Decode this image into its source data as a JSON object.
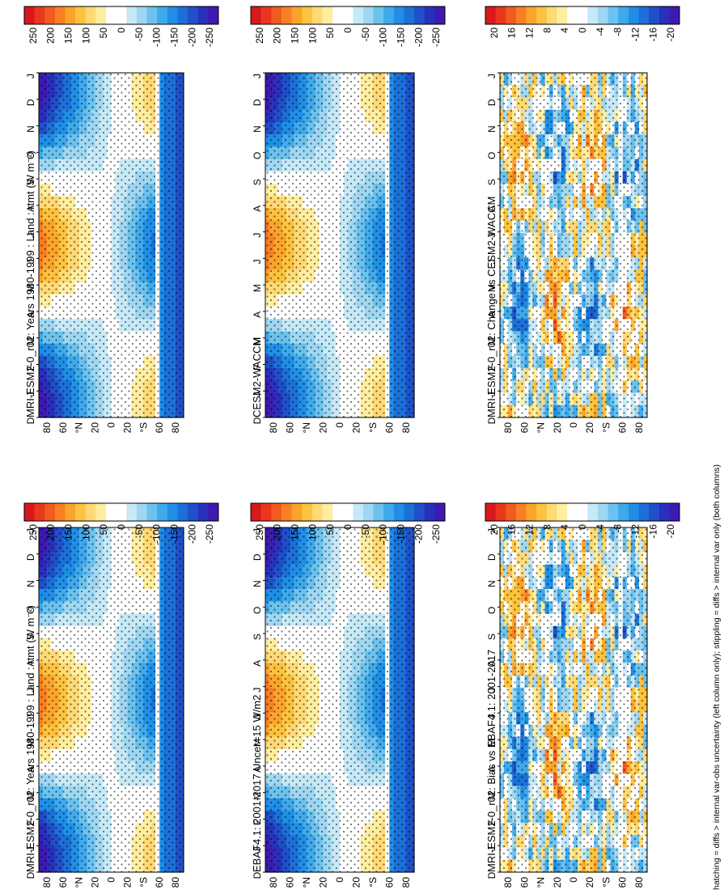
{
  "figure": {
    "footnote": "hatching = diffs > internal var-obs uncertainty (left column only); stippling = diffs > internal var only (both columns)"
  },
  "chart_data": [
    {
      "type": "heatmap",
      "title": "MRI-ESM2-0_r02: Years 1980-1999 : Land : rtmt (W m⁻²)",
      "x_ticks": [
        "D",
        "J",
        "F",
        "M",
        "A",
        "M",
        "J",
        "J",
        "A",
        "S",
        "O",
        "N",
        "D",
        "J"
      ],
      "y_ticks": [
        "80",
        "60",
        "°N",
        "20",
        "0",
        "20",
        "°S",
        "60",
        "80"
      ],
      "colorbar_ticks": [
        "250",
        "200",
        "150",
        "100",
        "50",
        "0",
        "-50",
        "-100",
        "-150",
        "-200",
        "-250"
      ],
      "colorbar_range": [
        -275,
        275
      ],
      "colorbar_colors": [
        "#d7191c",
        "#e8371b",
        "#f35a1f",
        "#f87f24",
        "#fba42c",
        "#fdc23e",
        "#fed976",
        "#ffeda0",
        "#ffffff",
        "#ffffff",
        "#c6e9f7",
        "#9fd7f2",
        "#6cc2ee",
        "#3fa9ec",
        "#1f8fe6",
        "#1c70d8",
        "#1f50c8",
        "#2a2fbe",
        "#3d1ab0"
      ],
      "seasonal_amplitude": 250,
      "hatching": true,
      "stippling": true
    },
    {
      "type": "heatmap",
      "title": "MRI-ESM2-0_r02: Years 1980-1999 : Land : rtmt (W m⁻²)",
      "x_ticks": [
        "D",
        "J",
        "F",
        "M",
        "A",
        "M",
        "J",
        "J",
        "A",
        "S",
        "O",
        "N",
        "D",
        "J"
      ],
      "y_ticks": [
        "80",
        "60",
        "°N",
        "20",
        "0",
        "20",
        "°S",
        "60",
        "80"
      ],
      "colorbar_ticks": [
        "250",
        "200",
        "150",
        "100",
        "50",
        "0",
        "-50",
        "-100",
        "-150",
        "-200",
        "-250"
      ],
      "colorbar_range": [
        -275,
        275
      ],
      "seasonal_amplitude": 250,
      "hatching": false,
      "stippling": true
    },
    {
      "type": "heatmap",
      "title": "EBAF4.1: 2001-2017 Uncer=15 W/m2",
      "x_ticks": [
        "D",
        "J",
        "F",
        "M",
        "A",
        "M",
        "J",
        "J",
        "A",
        "S",
        "O",
        "N",
        "D",
        "J"
      ],
      "y_ticks": [
        "80",
        "60",
        "°N",
        "20",
        "0",
        "20",
        "°S",
        "60",
        "80"
      ],
      "colorbar_ticks": [
        "250",
        "200",
        "150",
        "100",
        "50",
        "0",
        "-50",
        "-100",
        "-150",
        "-200",
        "-250"
      ],
      "colorbar_range": [
        -275,
        275
      ],
      "seasonal_amplitude": 250,
      "hatching": true,
      "stippling": true
    },
    {
      "type": "heatmap",
      "title": "CESM2-WACCM",
      "x_ticks": [
        "D",
        "J",
        "F",
        "M",
        "A",
        "M",
        "J",
        "J",
        "A",
        "S",
        "O",
        "N",
        "D",
        "J"
      ],
      "y_ticks": [
        "80",
        "60",
        "°N",
        "20",
        "0",
        "20",
        "°S",
        "60",
        "80"
      ],
      "colorbar_ticks": [
        "250",
        "200",
        "150",
        "100",
        "50",
        "0",
        "-50",
        "-100",
        "-150",
        "-200",
        "-250"
      ],
      "colorbar_range": [
        -275,
        275
      ],
      "seasonal_amplitude": 250,
      "hatching": false,
      "stippling": true
    },
    {
      "type": "heatmap",
      "title": "MRI-ESM2-0_r02: Bias vs EBAF4.1: 2001-2017",
      "x_ticks": [
        "D",
        "J",
        "F",
        "M",
        "A",
        "M",
        "J",
        "J",
        "A",
        "S",
        "O",
        "N",
        "D",
        "J"
      ],
      "y_ticks": [
        "80",
        "60",
        "°N",
        "20",
        "0",
        "20",
        "°S",
        "60",
        "80"
      ],
      "colorbar_ticks": [
        "20",
        "16",
        "12",
        "8",
        "4",
        "0",
        "-4",
        "-8",
        "-12",
        "-16",
        "-20"
      ],
      "colorbar_range": [
        -22,
        22
      ],
      "seasonal_amplitude": 20,
      "hatching": true,
      "stippling": true
    },
    {
      "type": "heatmap",
      "title": "MRI-ESM2-0_r02: Change vs CESM2-WACCM",
      "x_ticks": [
        "D",
        "J",
        "F",
        "M",
        "A",
        "M",
        "J",
        "J",
        "A",
        "S",
        "O",
        "N",
        "D",
        "J"
      ],
      "y_ticks": [
        "80",
        "60",
        "°N",
        "20",
        "0",
        "20",
        "°S",
        "60",
        "80"
      ],
      "colorbar_ticks": [
        "20",
        "16",
        "12",
        "8",
        "4",
        "0",
        "-4",
        "-8",
        "-12",
        "-16",
        "-20"
      ],
      "colorbar_range": [
        -22,
        22
      ],
      "seasonal_amplitude": 20,
      "hatching": false,
      "stippling": true
    }
  ]
}
